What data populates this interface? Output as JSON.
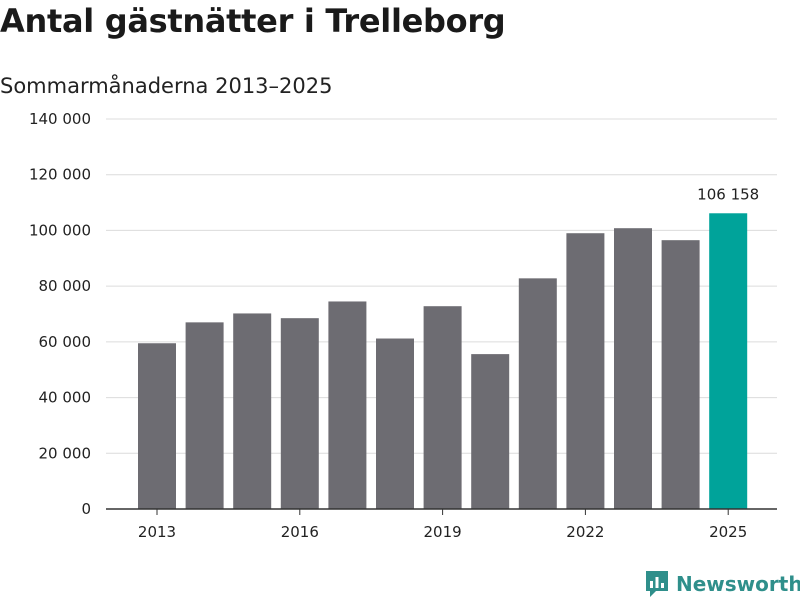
{
  "header": {
    "title": "Antal gästnätter i Trelleborg",
    "subtitle": "Sommarmånaderna 2013–2025"
  },
  "brand": {
    "name": "Newsworthy",
    "color": "#2f8f8b"
  },
  "colors": {
    "bar": "#6d6c72",
    "highlight": "#00a39a",
    "grid": "#dcdcdc",
    "axis": "#333333"
  },
  "chart_data": {
    "type": "bar",
    "title": "Antal gästnätter i Trelleborg",
    "subtitle": "Sommarmånaderna 2013–2025",
    "categories": [
      "2013",
      "2014",
      "2015",
      "2016",
      "2017",
      "2018",
      "2019",
      "2020",
      "2021",
      "2022",
      "2023",
      "2024",
      "2025"
    ],
    "values": [
      59500,
      67000,
      70200,
      68500,
      74500,
      61200,
      72800,
      55600,
      82800,
      99000,
      100800,
      96500,
      106158
    ],
    "x_tick_labels": [
      "2013",
      "2016",
      "2019",
      "2022",
      "2025"
    ],
    "y_ticks": [
      0,
      20000,
      40000,
      60000,
      80000,
      100000,
      120000,
      140000
    ],
    "y_tick_labels": [
      "0",
      "20 000",
      "40 000",
      "60 000",
      "80 000",
      "100 000",
      "120 000",
      "140 000"
    ],
    "ylim": [
      0,
      140000
    ],
    "grid": true,
    "highlight_index": 12,
    "data_labels": [
      {
        "category": "2025",
        "text": "106 158"
      }
    ],
    "xlabel": "",
    "ylabel": ""
  }
}
